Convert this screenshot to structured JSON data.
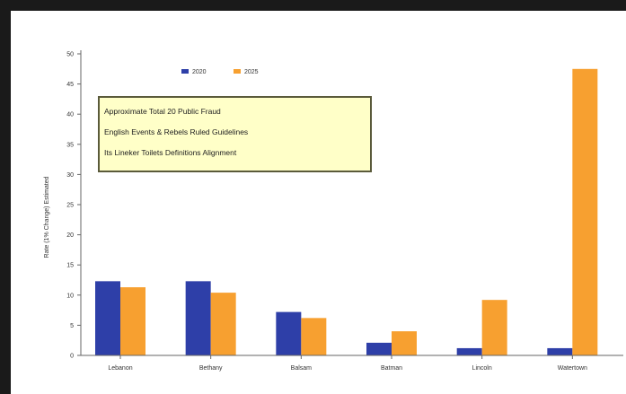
{
  "chart_data": {
    "type": "bar",
    "categories": [
      "Lebanon",
      "Bethany",
      "Balsam",
      "Batman",
      "Lincoln",
      "Watertown"
    ],
    "series": [
      {
        "name": "2020",
        "color": "#2e3fa8",
        "values": [
          12.3,
          12.3,
          7.2,
          2.1,
          1.2,
          1.2
        ]
      },
      {
        "name": "2025",
        "color": "#f7a030",
        "values": [
          11.3,
          10.4,
          6.2,
          4.0,
          9.2,
          47.5
        ]
      }
    ],
    "title": "",
    "xlabel": "",
    "ylabel": "Rate (1% Change) Estimated",
    "ylim": [
      0,
      50
    ],
    "yticks": [
      0,
      5,
      10,
      15,
      20,
      25,
      30,
      35,
      40,
      45,
      50
    ],
    "grid": false,
    "legend": "top-left",
    "note_lines": [
      "Approximate Total 20 Public Fraud",
      "English Events & Rebels Ruled Guidelines",
      "Its Lineker Toilets Definitions Alignment"
    ],
    "note_bg": "#ffffc8",
    "note_border": "#5a5a3a"
  }
}
